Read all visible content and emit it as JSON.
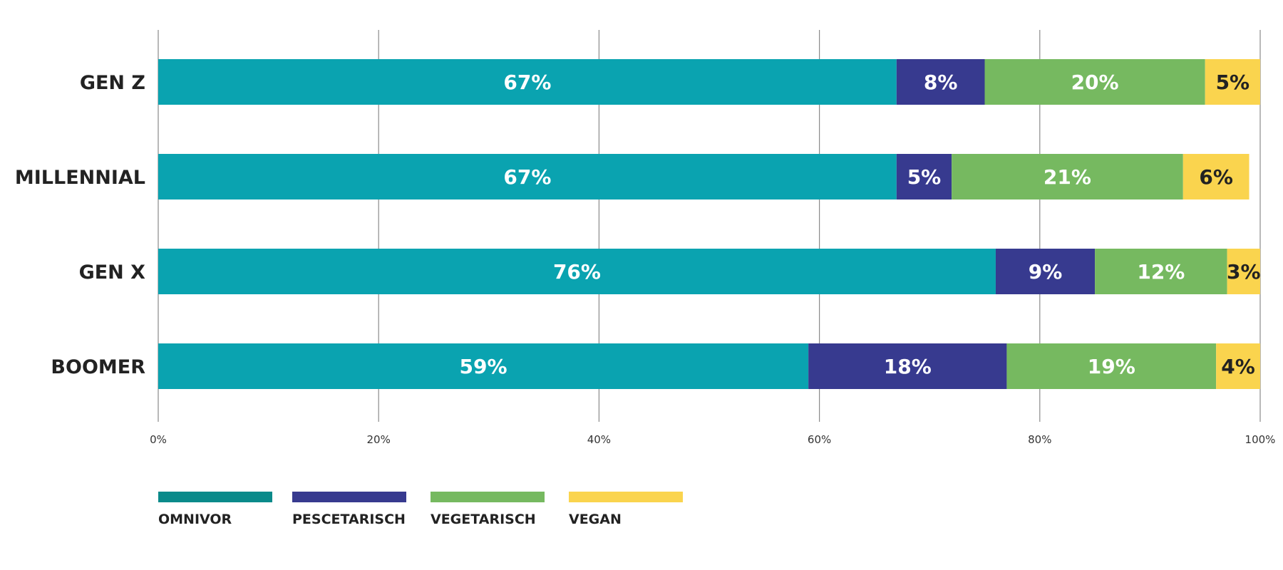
{
  "chart_data": {
    "type": "bar",
    "orientation": "horizontal",
    "stacked": true,
    "categories": [
      "GEN Z",
      "MILLENNIAL",
      "GEN X",
      "BOOMER"
    ],
    "series": [
      {
        "name": "OMNIVOR",
        "values": [
          67,
          67,
          76,
          59
        ],
        "color": "#0aa3b0",
        "legend_color": "#0a8a8a",
        "label_color": "#ffffff"
      },
      {
        "name": "PESCETARISCH",
        "values": [
          8,
          5,
          9,
          18
        ],
        "color": "#373a8f",
        "legend_color": "#373a8f",
        "label_color": "#ffffff"
      },
      {
        "name": "VEGETARISCH",
        "values": [
          20,
          21,
          12,
          19
        ],
        "color": "#76b960",
        "legend_color": "#76b960",
        "label_color": "#ffffff"
      },
      {
        "name": "VEGAN",
        "values": [
          5,
          6,
          3,
          4
        ],
        "color": "#fad44e",
        "legend_color": "#fad44e",
        "label_color": "#222222"
      }
    ],
    "xlim": [
      0,
      100
    ],
    "x_ticks": [
      "0%",
      "20%",
      "40%",
      "60%",
      "80%",
      "100%"
    ],
    "unit": "%",
    "grid": true,
    "legend_position": "bottom-left"
  }
}
